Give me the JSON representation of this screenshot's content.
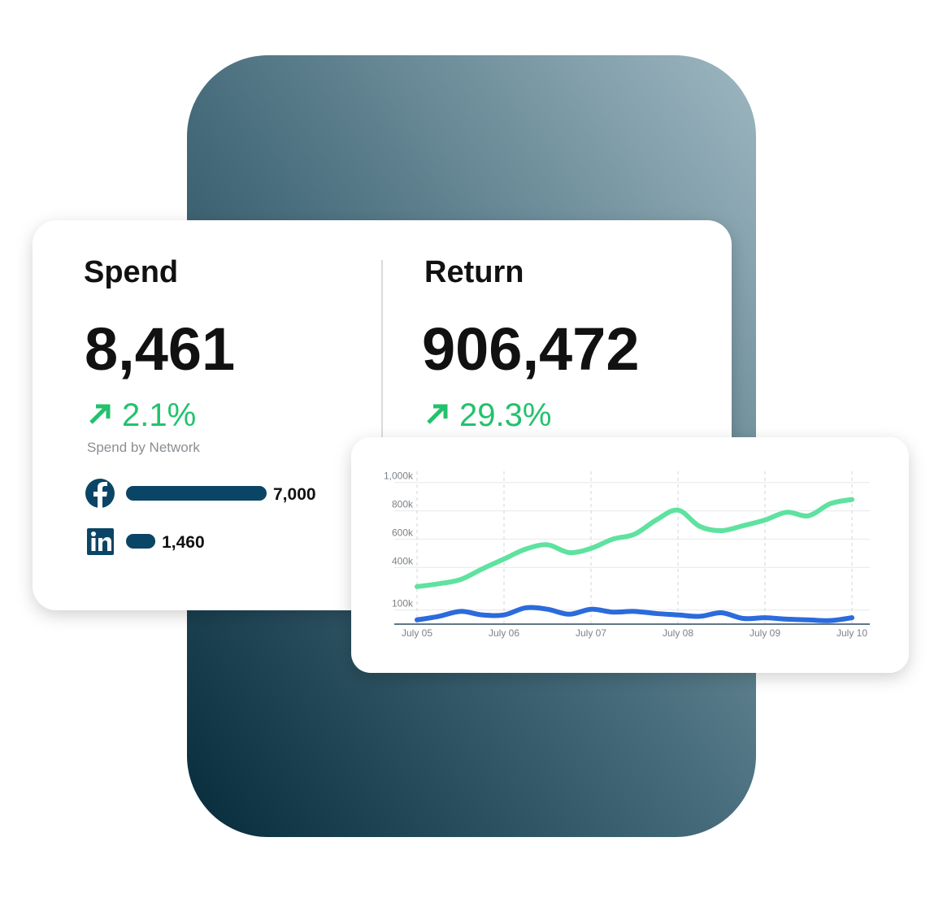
{
  "spend": {
    "title": "Spend",
    "value": "8,461",
    "change": "2.1%"
  },
  "return": {
    "title": "Return",
    "value": "906,472",
    "change": "29.3%"
  },
  "network": {
    "title": "Spend by Network",
    "color": "#0b4566",
    "items": [
      {
        "value": 7000,
        "label": "7,000"
      },
      {
        "value": 1460,
        "label": "1,460"
      }
    ]
  },
  "chart_data": {
    "type": "line",
    "categories": [
      "July 05",
      null,
      null,
      null,
      "July 06",
      null,
      null,
      null,
      "July 07",
      null,
      null,
      null,
      "July 08",
      null,
      null,
      null,
      "July 09",
      null,
      null,
      null,
      "July 10"
    ],
    "series": [
      {
        "color": "#5ee29f",
        "values": [
          265000,
          285000,
          315000,
          390000,
          460000,
          530000,
          560000,
          505000,
          535000,
          600000,
          635000,
          735000,
          805000,
          690000,
          660000,
          695000,
          735000,
          790000,
          765000,
          850000,
          880000
        ]
      },
      {
        "color": "#2b6bdc",
        "values": [
          30000,
          55000,
          90000,
          65000,
          65000,
          115000,
          105000,
          70000,
          105000,
          85000,
          90000,
          75000,
          65000,
          55000,
          80000,
          40000,
          45000,
          35000,
          30000,
          25000,
          45000
        ]
      }
    ],
    "ylim": [
      0,
      1050000
    ],
    "yticks": [
      {
        "value": 100000,
        "label": "100k"
      },
      {
        "value": 400000,
        "label": "400k"
      },
      {
        "value": 600000,
        "label": "600k"
      },
      {
        "value": 800000,
        "label": "800k"
      },
      {
        "value": 1000000,
        "label": "1,000k"
      }
    ],
    "grid": true
  }
}
